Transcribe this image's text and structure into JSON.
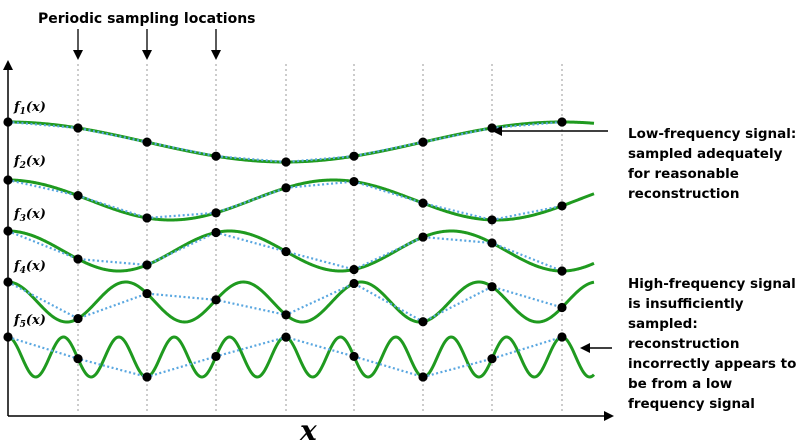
{
  "header": {
    "sampling_label": "Periodic sampling locations"
  },
  "axis": {
    "x_label": "x"
  },
  "signals": [
    {
      "name": "f",
      "subscript": "1",
      "arg": "(x)",
      "periods_per_sample": 8.0
    },
    {
      "name": "f",
      "subscript": "2",
      "arg": "(x)",
      "periods_per_sample": 4.7
    },
    {
      "name": "f",
      "subscript": "3",
      "arg": "(x)",
      "periods_per_sample": 3.2
    },
    {
      "name": "f",
      "subscript": "4",
      "arg": "(x)",
      "periods_per_sample": 1.7
    },
    {
      "name": "f",
      "subscript": "5",
      "arg": "(x)",
      "periods_per_sample": 0.8
    }
  ],
  "annotations": {
    "low_frequency": [
      "Low-frequency signal:",
      "sampled adequately",
      "for reasonable",
      "reconstruction"
    ],
    "high_frequency": [
      "High-frequency signal",
      "is insufficiently",
      "sampled:",
      "reconstruction",
      "incorrectly appears to",
      "be from a low",
      "frequency signal"
    ]
  },
  "colors": {
    "signal": "#1f9a1f",
    "reconstruction": "#5aa7e0",
    "sample_point": "#000000",
    "gridline": "#9a9a9a",
    "axis": "#000000"
  },
  "icons": {
    "sample_marker": "black-dot-icon",
    "pointer": "arrow-left-icon",
    "sampling_marker": "arrow-down-icon"
  }
}
